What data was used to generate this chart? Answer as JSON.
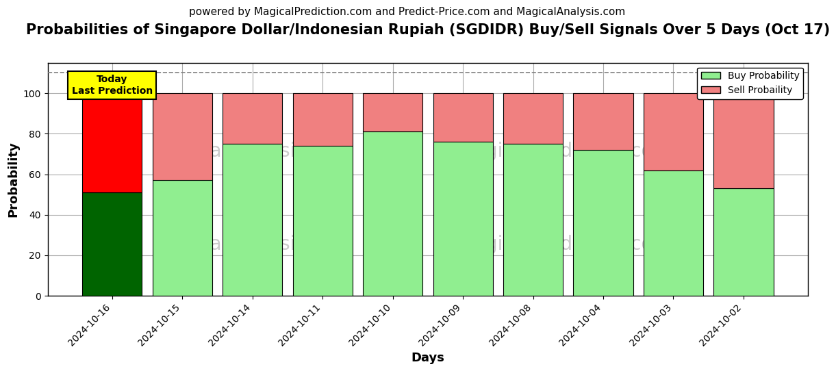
{
  "title": "Probabilities of Singapore Dollar/Indonesian Rupiah (SGDIDR) Buy/Sell Signals Over 5 Days (Oct 17)",
  "subtitle": "powered by MagicalPrediction.com and Predict-Price.com and MagicalAnalysis.com",
  "xlabel": "Days",
  "ylabel": "Probability",
  "dates": [
    "2024-10-16",
    "2024-10-15",
    "2024-10-14",
    "2024-10-11",
    "2024-10-10",
    "2024-10-09",
    "2024-10-08",
    "2024-10-04",
    "2024-10-03",
    "2024-10-02"
  ],
  "buy_probs": [
    51,
    57,
    75,
    74,
    81,
    76,
    75,
    72,
    62,
    53
  ],
  "sell_probs": [
    49,
    43,
    25,
    26,
    19,
    24,
    25,
    28,
    38,
    47
  ],
  "today_index": 0,
  "today_buy_color": "#006400",
  "today_sell_color": "#FF0000",
  "buy_color": "#90EE90",
  "sell_color": "#F08080",
  "bar_edge_color": "#000000",
  "today_label": "Today\nLast Prediction",
  "today_label_bg": "#FFFF00",
  "watermark_row1": [
    "MagicalAnalysis.com",
    "MagicalPrediction.com"
  ],
  "watermark_row2": [
    "MagicalAnalysis.com",
    "MagicalPrediction.com"
  ],
  "watermark_color": "#CCCCCC",
  "grid_color": "#AAAAAA",
  "plot_bg_color": "#FFFFFF",
  "fig_bg_color": "#FFFFFF",
  "ylim": [
    0,
    115
  ],
  "dashed_line_y": 110,
  "legend_buy_label": "Buy Probability",
  "legend_sell_label": "Sell Probaility",
  "title_fontsize": 15,
  "subtitle_fontsize": 11,
  "axis_label_fontsize": 13,
  "bar_width": 0.85
}
